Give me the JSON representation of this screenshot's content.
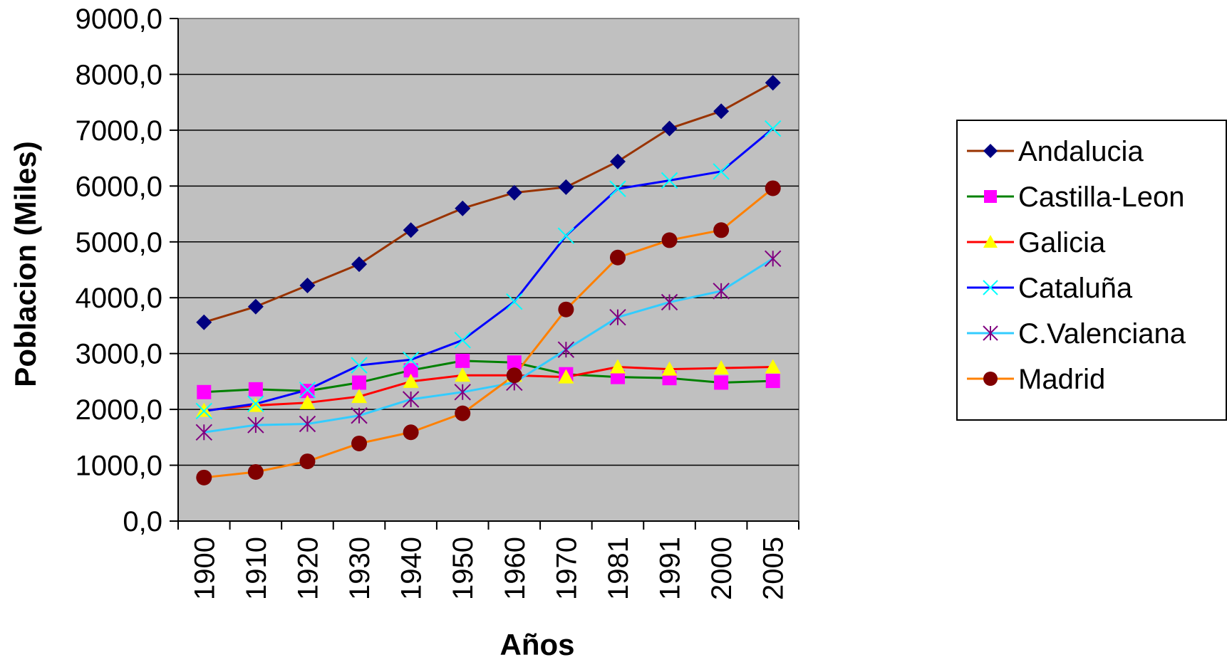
{
  "chart_data": {
    "type": "line",
    "title": "",
    "xlabel": "Años",
    "ylabel": "Poblacion (Miles)",
    "categories": [
      "1900",
      "1910",
      "1920",
      "1930",
      "1940",
      "1950",
      "1960",
      "1970",
      "1981",
      "1991",
      "2000",
      "2005"
    ],
    "ylim": [
      0,
      9000
    ],
    "yticks": [
      "0,0",
      "1000,0",
      "2000,0",
      "3000,0",
      "4000,0",
      "5000,0",
      "6000,0",
      "7000,0",
      "8000,0",
      "9000,0"
    ],
    "grid": true,
    "plot_background": "#c0c0c0",
    "legend_position": "right",
    "series": [
      {
        "name": "Andalucia",
        "color": "#993300",
        "marker_color": "#000080",
        "marker": "diamond",
        "values": [
          3560,
          3840,
          4220,
          4600,
          5210,
          5600,
          5880,
          5980,
          6440,
          7030,
          7340,
          7850
        ]
      },
      {
        "name": "Castilla-Leon",
        "color": "#008000",
        "marker_color": "#ff00ff",
        "marker": "square",
        "values": [
          2310,
          2360,
          2330,
          2480,
          2700,
          2870,
          2840,
          2630,
          2580,
          2560,
          2480,
          2510
        ]
      },
      {
        "name": "Galicia",
        "color": "#ff0000",
        "marker_color": "#ffff00",
        "marker": "triangle",
        "values": [
          1980,
          2070,
          2120,
          2230,
          2500,
          2610,
          2610,
          2580,
          2760,
          2720,
          2740,
          2760
        ]
      },
      {
        "name": "Cataluña",
        "color": "#0000ff",
        "marker_color": "#00ffff",
        "marker": "x",
        "values": [
          1970,
          2100,
          2350,
          2790,
          2890,
          3240,
          3930,
          5110,
          5950,
          6100,
          6260,
          7030
        ]
      },
      {
        "name": "C.Valenciana",
        "color": "#33ccff",
        "marker_color": "#800080",
        "marker": "asterisk",
        "values": [
          1590,
          1720,
          1740,
          1890,
          2180,
          2310,
          2480,
          3070,
          3650,
          3920,
          4120,
          4700
        ]
      },
      {
        "name": "Madrid",
        "color": "#ff8000",
        "marker_color": "#800000",
        "marker": "circle",
        "values": [
          780,
          880,
          1070,
          1390,
          1590,
          1930,
          2610,
          3790,
          4720,
          5030,
          5210,
          5960
        ]
      }
    ]
  }
}
